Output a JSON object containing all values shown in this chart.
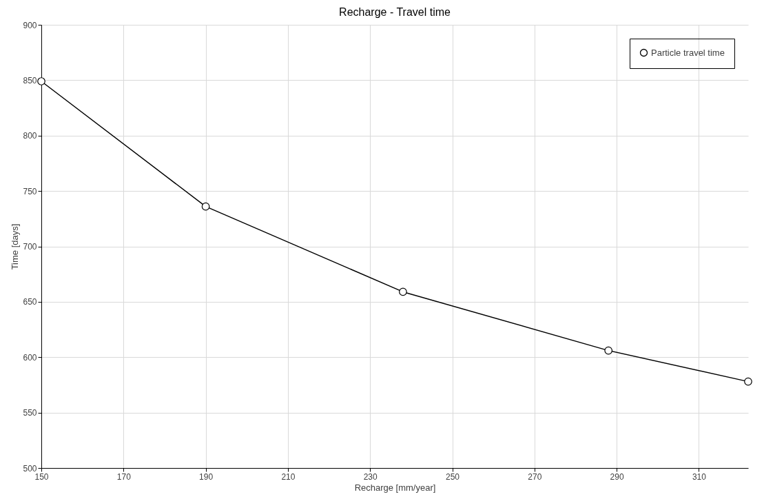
{
  "chart_data": {
    "type": "line",
    "title": "Recharge - Travel time",
    "xlabel": "Recharge [mm/year]",
    "ylabel": "Time [days]",
    "x": [
      150,
      190,
      238,
      288,
      322
    ],
    "series": [
      {
        "name": "Particle travel time",
        "color": "#000000",
        "values": [
          849,
          736,
          659,
          606,
          578
        ]
      }
    ],
    "xlim": [
      150,
      322
    ],
    "xticks": [
      150,
      170,
      190,
      210,
      230,
      250,
      270,
      290,
      310
    ],
    "ylim": [
      500,
      900
    ],
    "yticks": [
      500,
      550,
      600,
      650,
      700,
      750,
      800,
      850,
      900
    ],
    "grid": true,
    "legend": "top right",
    "marker": "circle",
    "line_style": "solid"
  }
}
